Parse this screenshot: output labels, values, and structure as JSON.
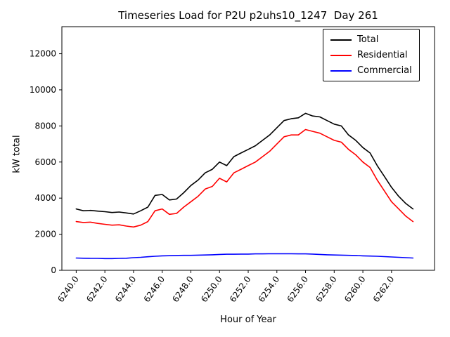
{
  "chart_data": {
    "type": "line",
    "title": "Timeseries Load for P2U p2uhs10_1247  Day 261",
    "xlabel": "Hour of Year",
    "ylabel": "kW total",
    "grid": false,
    "legend_position": "upper right",
    "xlim": [
      6239,
      6265
    ],
    "ylim": [
      0,
      13500
    ],
    "yticks": [
      0,
      2000,
      4000,
      6000,
      8000,
      10000,
      12000
    ],
    "ytick_labels": [
      "0",
      "2000",
      "4000",
      "6000",
      "8000",
      "10000",
      "12000"
    ],
    "xticks": [
      6240,
      6242,
      6244,
      6246,
      6248,
      6250,
      6252,
      6254,
      6256,
      6258,
      6260,
      6262
    ],
    "xtick_labels": [
      "6240.0",
      "6242.0",
      "6244.0",
      "6246.0",
      "6248.0",
      "6250.0",
      "6252.0",
      "6254.0",
      "6256.0",
      "6258.0",
      "6260.0",
      "6262.0"
    ],
    "x": [
      6240,
      6240.5,
      6241,
      6241.5,
      6242,
      6242.5,
      6243,
      6243.5,
      6244,
      6244.5,
      6245,
      6245.5,
      6246,
      6246.5,
      6247,
      6247.5,
      6248,
      6248.5,
      6249,
      6249.5,
      6250,
      6250.5,
      6251,
      6251.5,
      6252,
      6252.5,
      6253,
      6253.5,
      6254,
      6254.5,
      6255,
      6255.5,
      6256,
      6256.5,
      6257,
      6257.5,
      6258,
      6258.5,
      6259,
      6259.5,
      6260,
      6260.5,
      6261,
      6261.5,
      6262,
      6262.5,
      6263,
      6263.5
    ],
    "series": [
      {
        "name": "Total",
        "color": "#000000",
        "values": [
          3400,
          3300,
          3320,
          3280,
          3250,
          3200,
          3230,
          3180,
          3120,
          3300,
          3500,
          4150,
          4200,
          3900,
          3950,
          4300,
          4700,
          5000,
          5400,
          5600,
          6000,
          5800,
          6300,
          6500,
          6700,
          6900,
          7200,
          7500,
          7900,
          8300,
          8400,
          8450,
          8700,
          8550,
          8500,
          8300,
          8100,
          8000,
          7500,
          7200,
          6800,
          6500,
          5800,
          5200,
          4600,
          4100,
          3700,
          3400
        ]
      },
      {
        "name": "Residential",
        "color": "#ff0000",
        "values": [
          2700,
          2650,
          2670,
          2600,
          2550,
          2500,
          2520,
          2450,
          2400,
          2500,
          2700,
          3300,
          3400,
          3100,
          3150,
          3500,
          3800,
          4100,
          4500,
          4650,
          5100,
          4900,
          5400,
          5600,
          5800,
          6000,
          6300,
          6600,
          7000,
          7400,
          7500,
          7500,
          7800,
          7700,
          7600,
          7400,
          7200,
          7100,
          6700,
          6400,
          6000,
          5700,
          5000,
          4400,
          3800,
          3400,
          3000,
          2700
        ]
      },
      {
        "name": "Commercial",
        "color": "#0000ff",
        "values": [
          680,
          670,
          660,
          660,
          650,
          650,
          660,
          670,
          700,
          720,
          750,
          780,
          800,
          810,
          820,
          830,
          830,
          840,
          850,
          860,
          880,
          890,
          890,
          900,
          900,
          910,
          910,
          920,
          920,
          920,
          920,
          910,
          910,
          900,
          880,
          860,
          850,
          840,
          830,
          820,
          800,
          790,
          780,
          760,
          740,
          720,
          700,
          680
        ]
      }
    ]
  }
}
